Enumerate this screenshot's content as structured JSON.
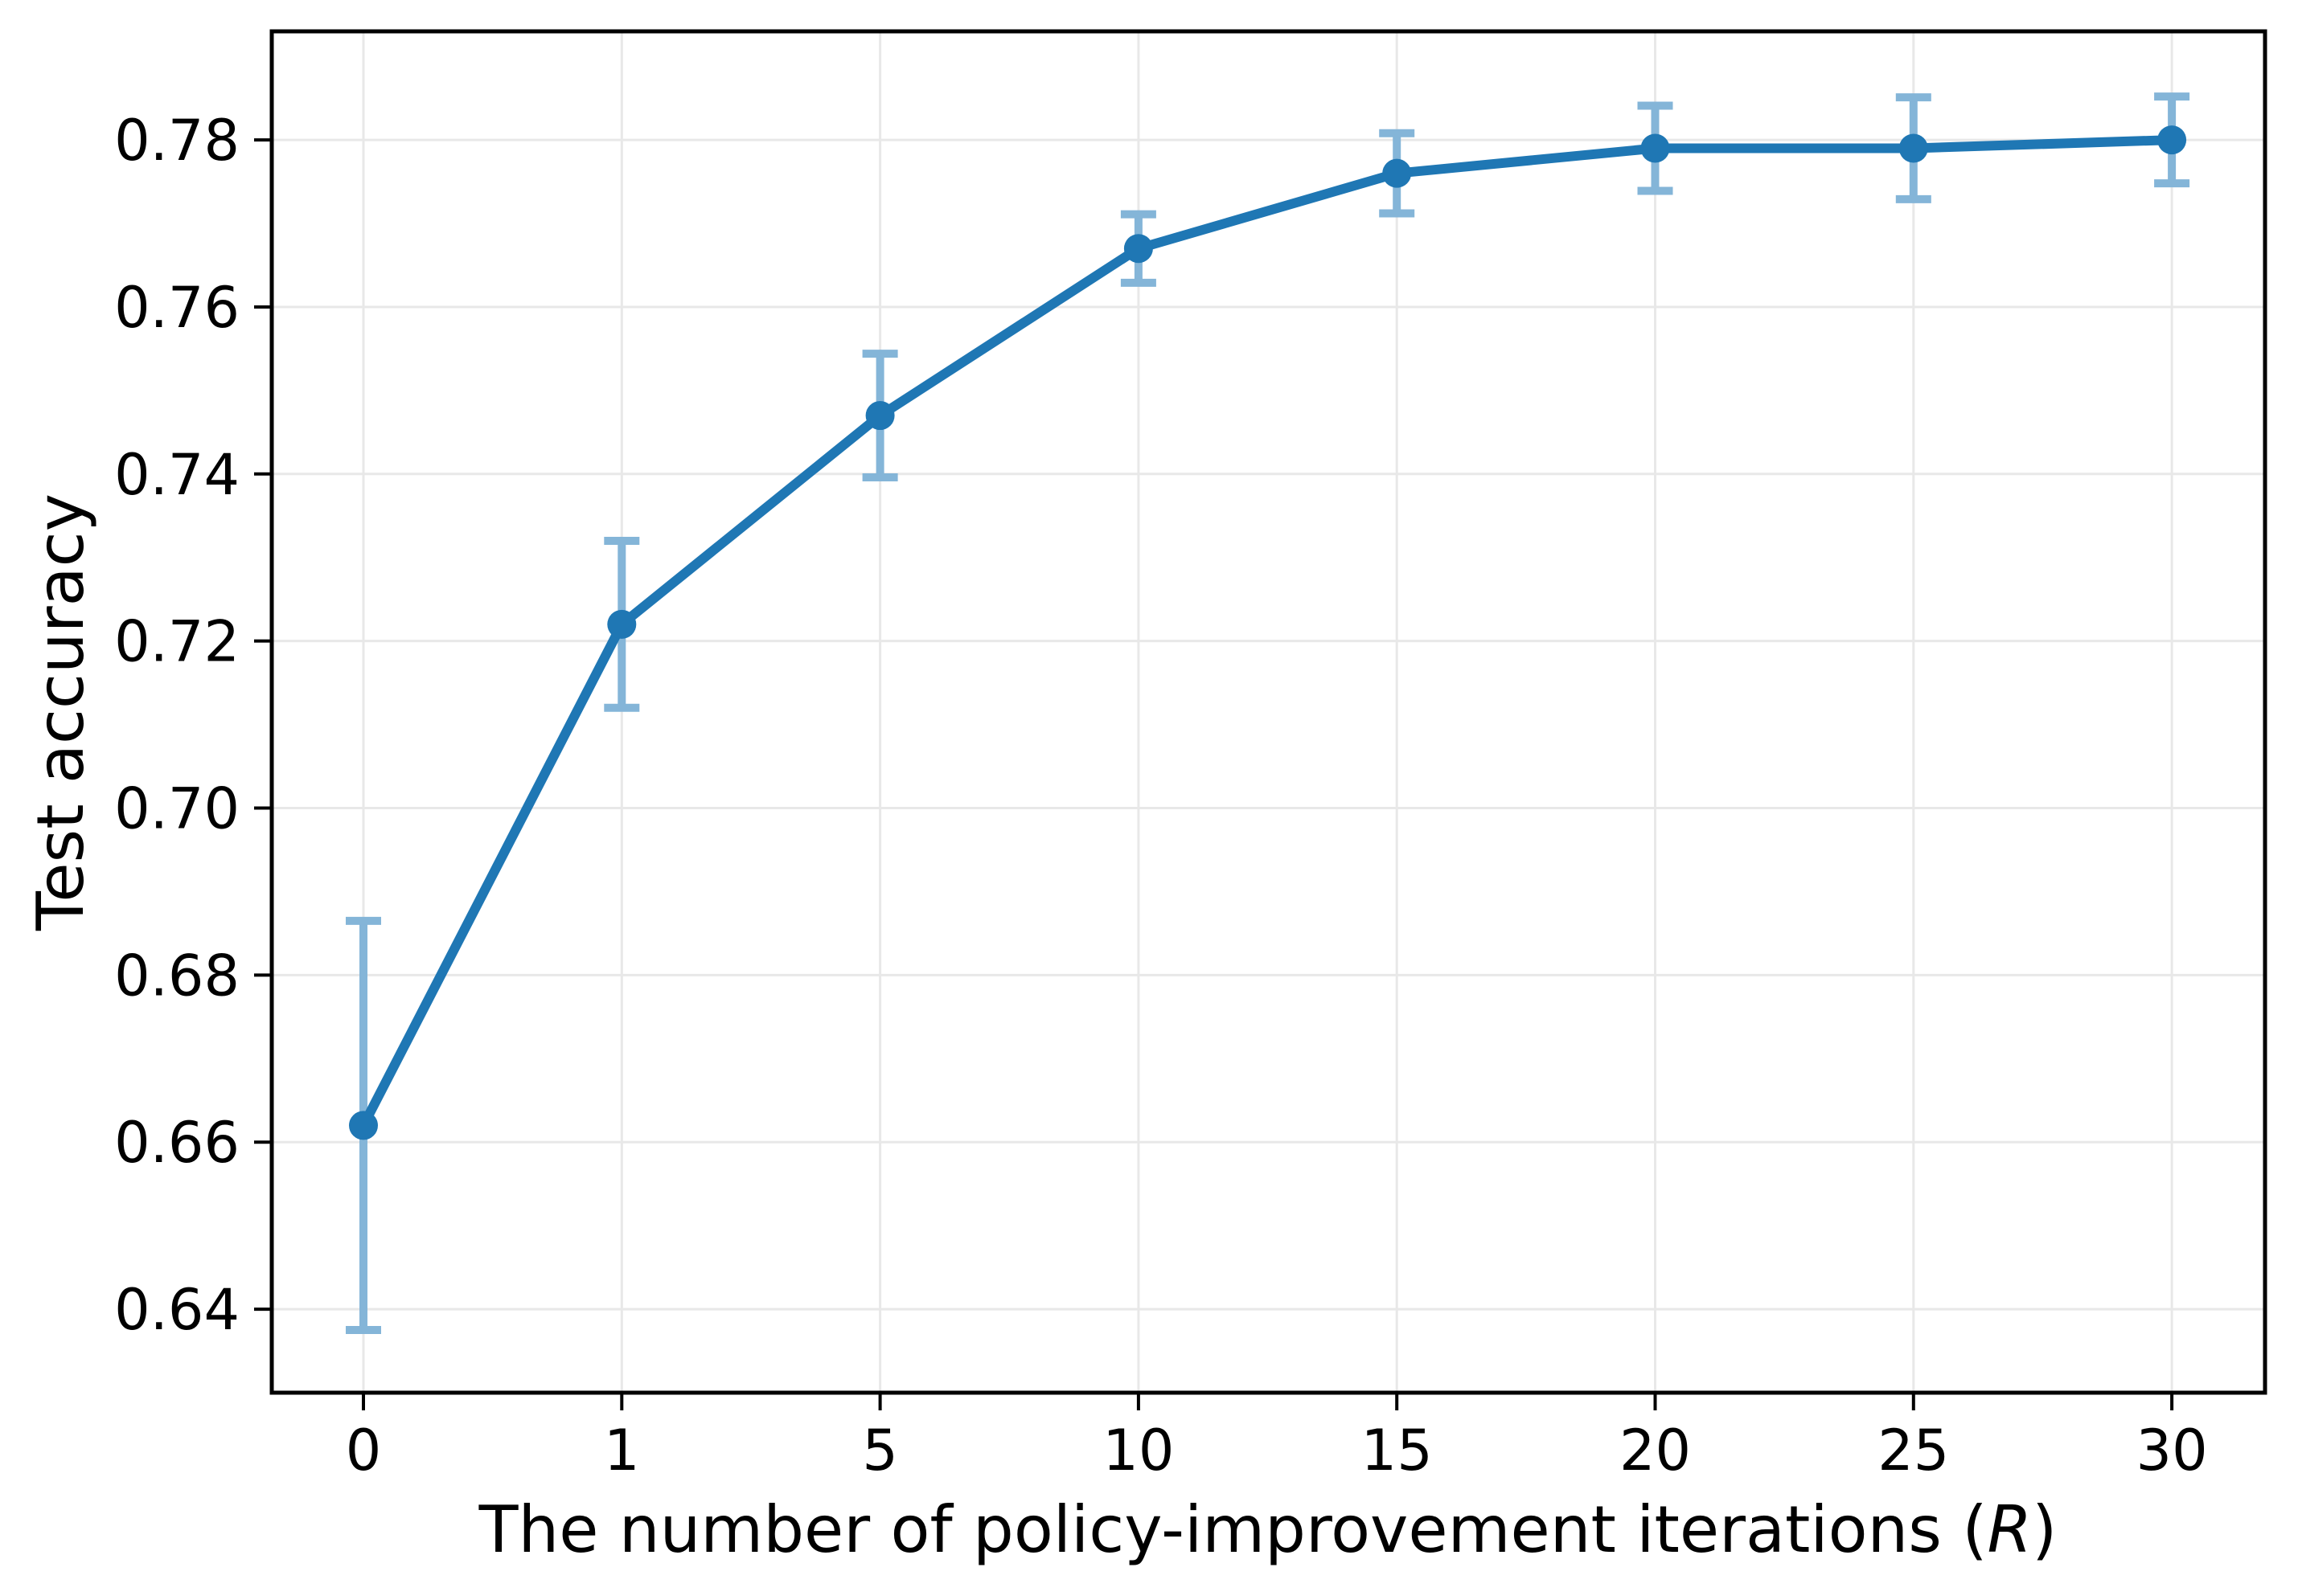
{
  "chart_data": {
    "type": "line",
    "title": "",
    "xlabel": "The number of policy-improvement iterations (R)",
    "xlabel_parts": {
      "prefix": "The number of policy-improvement iterations (",
      "italic": "R",
      "suffix": ")"
    },
    "ylabel": "Test accuracy",
    "categories": [
      "0",
      "1",
      "5",
      "10",
      "15",
      "20",
      "25",
      "30"
    ],
    "x_values": [
      0,
      1,
      5,
      10,
      15,
      20,
      25,
      30
    ],
    "series": [
      {
        "name": "Test accuracy",
        "values": [
          0.662,
          0.722,
          0.747,
          0.767,
          0.776,
          0.779,
          0.779,
          0.78
        ],
        "error_bars": [
          0.0245,
          0.01,
          0.0074,
          0.0041,
          0.0048,
          0.0051,
          0.0061,
          0.0052
        ]
      }
    ],
    "y_ticks": [
      "0.64",
      "0.66",
      "0.68",
      "0.70",
      "0.72",
      "0.74",
      "0.76",
      "0.78"
    ],
    "y_tick_values": [
      0.64,
      0.66,
      0.68,
      0.7,
      0.72,
      0.74,
      0.76,
      0.78
    ],
    "ylim": [
      0.63,
      0.793
    ],
    "x_axis_style": "categorical-even-spacing",
    "grid": true,
    "legend": false,
    "marker": "circle",
    "colors": {
      "line": "#1f77b4",
      "marker": "#1f77b4",
      "error_bar": "#84b5d8",
      "grid": "#e8e8e8",
      "axis": "#000000",
      "background": "#ffffff"
    }
  }
}
